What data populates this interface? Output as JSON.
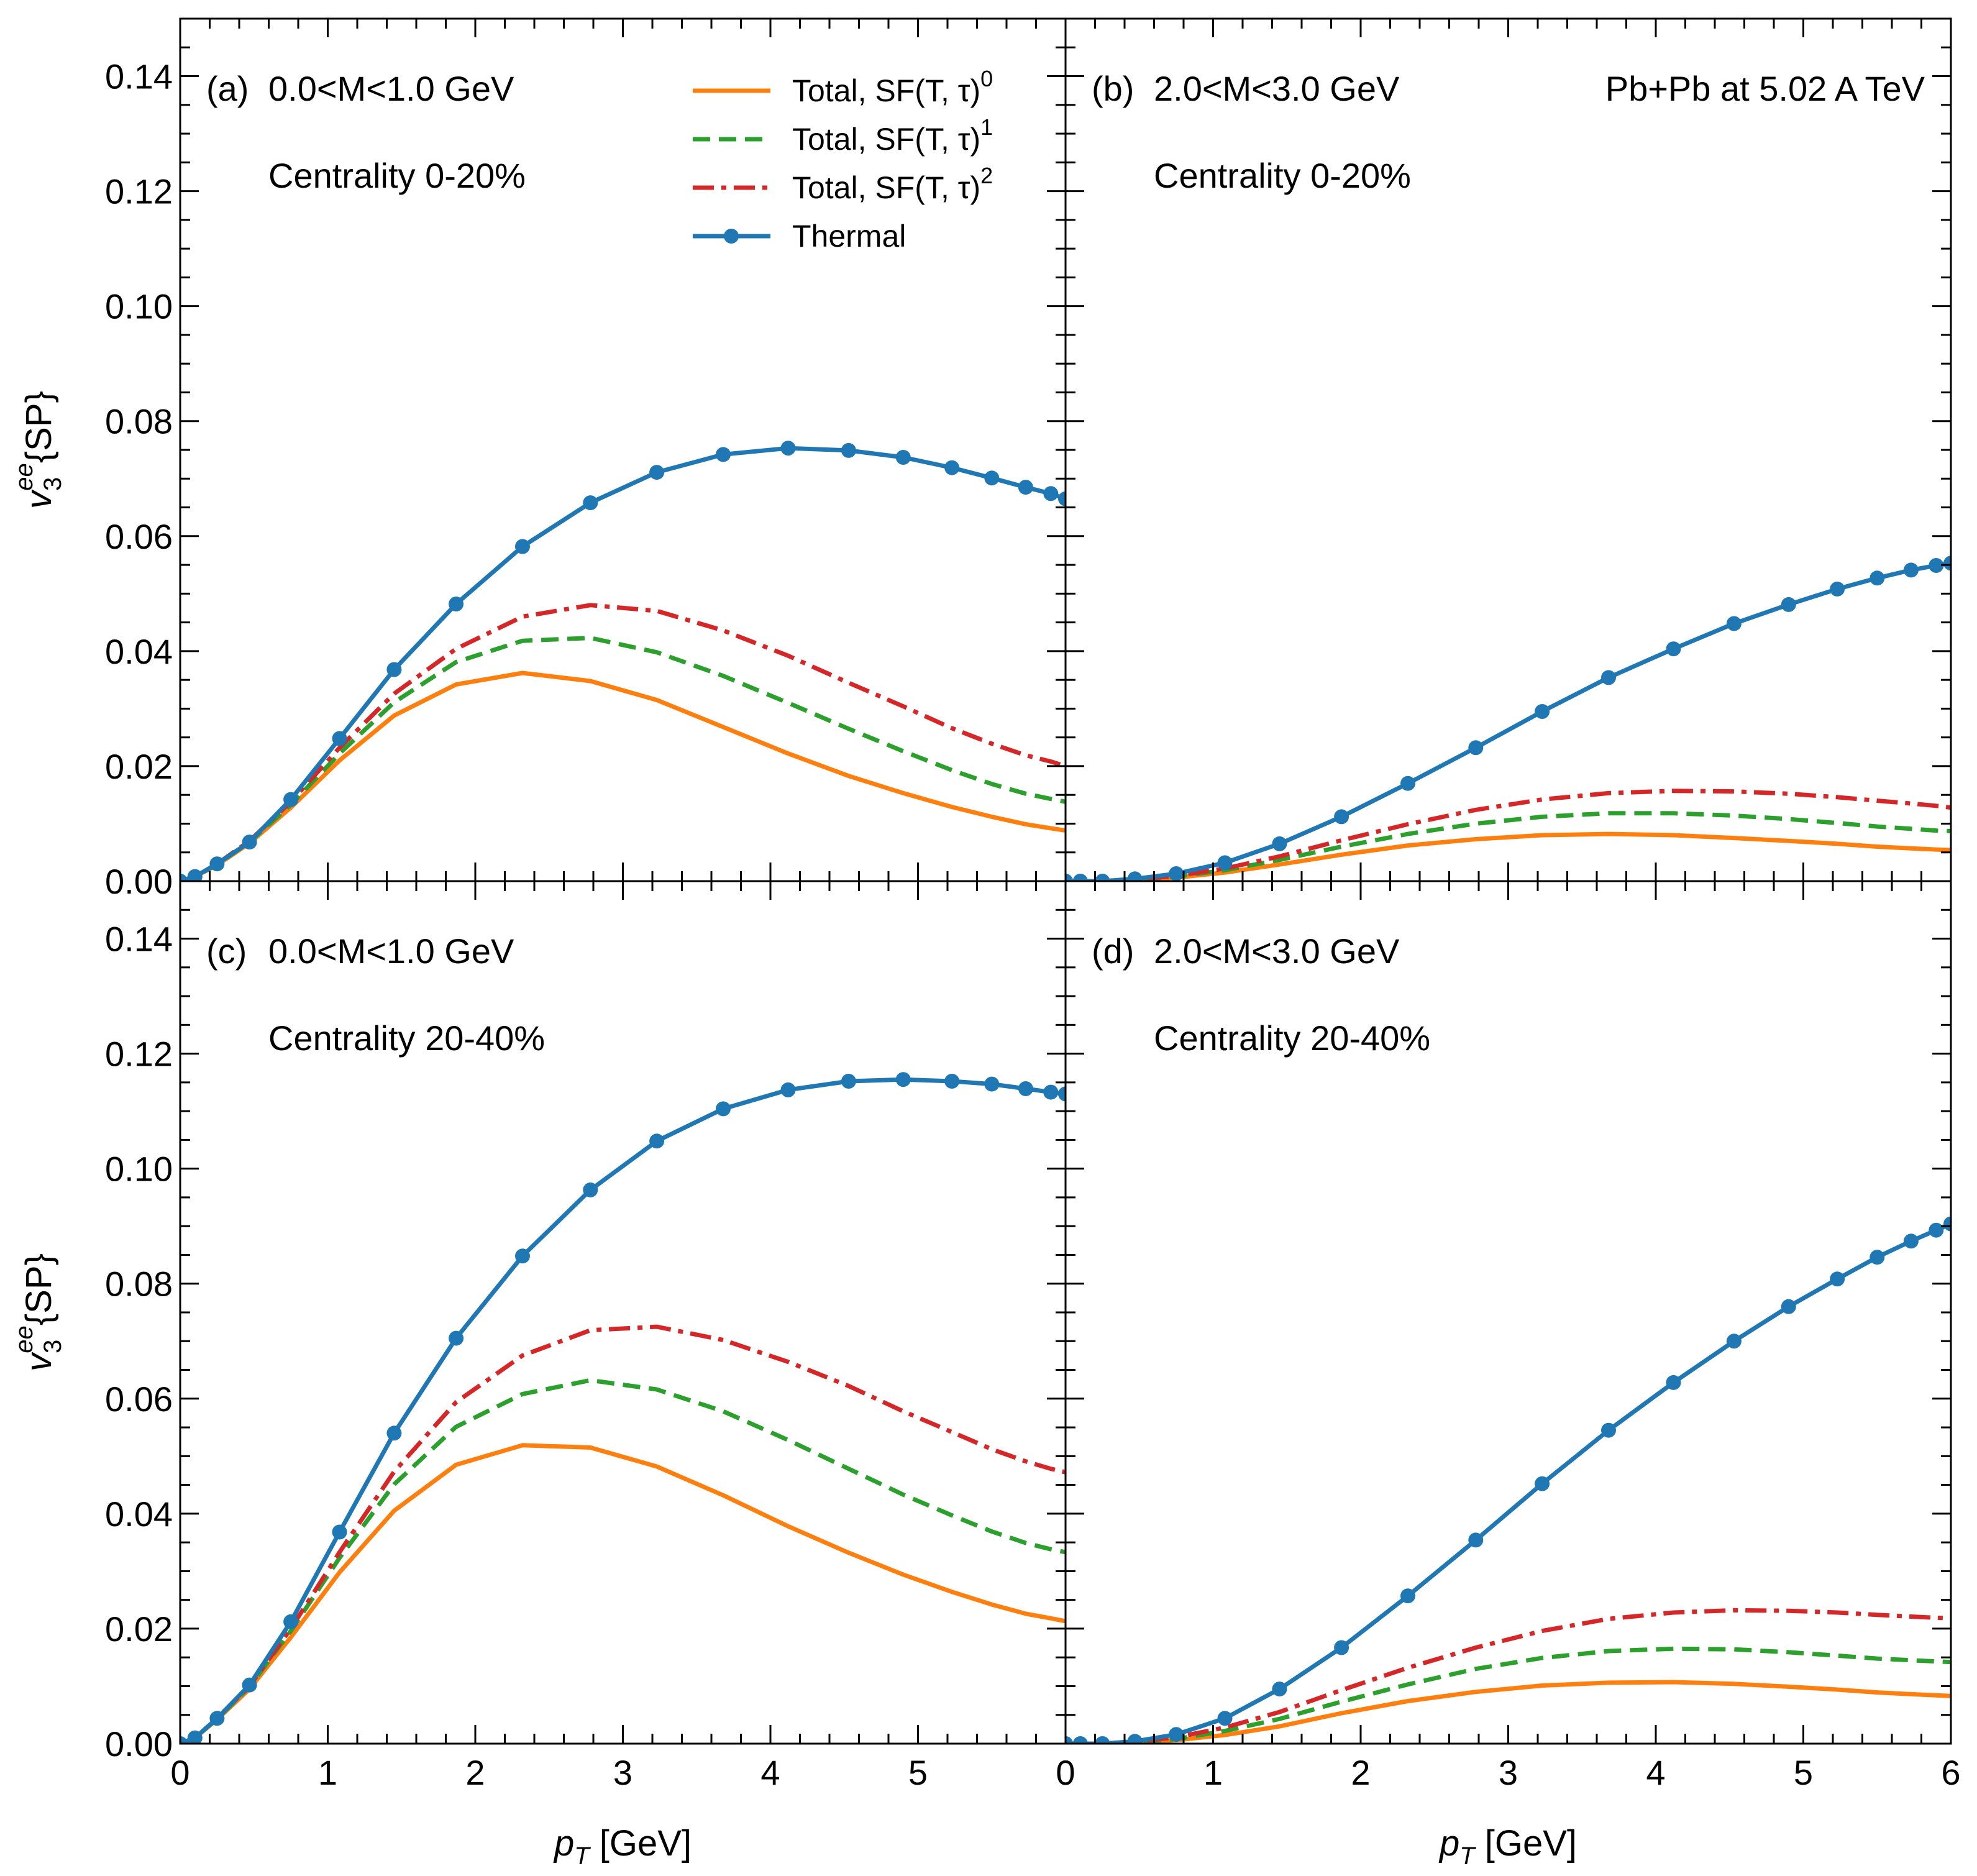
{
  "chart_data": {
    "type": "line",
    "layout": "2x2 panels with shared axes",
    "xlabel_var": "p",
    "xlabel_sub": "T",
    "xlabel_unit": "[GeV]",
    "ylabel_var": "v",
    "ylabel_sub": "3",
    "ylabel_sup": "ee",
    "ylabel_rest": "{SP}",
    "xlim": [
      0,
      6
    ],
    "ylim": [
      0,
      0.15
    ],
    "x_ticks": [
      "0",
      "1",
      "2",
      "3",
      "4",
      "5",
      "0"
    ],
    "x_ticks_right": [
      "0",
      "1",
      "2",
      "3",
      "4",
      "5",
      "6"
    ],
    "y_ticks": [
      "0.00",
      "0.02",
      "0.04",
      "0.06",
      "0.08",
      "0.10",
      "0.12",
      "0.14"
    ],
    "annotation": "Pb+Pb at 5.02 A TeV",
    "legend": [
      {
        "prefix": "Total, SF(T, τ)",
        "sup": "0",
        "style": "solid",
        "color": "#ff7f0e"
      },
      {
        "prefix": "Total, SF(T, τ)",
        "sup": "1",
        "style": "dashed",
        "color": "#2ca02c"
      },
      {
        "prefix": "Total, SF(T, τ)",
        "sup": "2",
        "style": "dashdot",
        "color": "#d62728"
      },
      {
        "prefix": "Thermal",
        "sup": "",
        "style": "solid-marker",
        "color": "#1f77b4"
      }
    ],
    "panels": [
      {
        "id": "a",
        "label": "(a)",
        "mass": "0.0<M<1.0 GeV",
        "centrality": "Centrality 0-20%",
        "x": [
          0.0,
          0.1,
          0.25,
          0.47,
          0.75,
          1.08,
          1.45,
          1.87,
          2.32,
          2.78,
          3.23,
          3.68,
          4.12,
          4.53,
          4.9,
          5.23,
          5.5,
          5.73,
          5.9,
          6.0
        ],
        "series": [
          {
            "name": "sf0",
            "values": [
              0.0,
              0.0008,
              0.0028,
              0.0066,
              0.0128,
              0.021,
              0.0288,
              0.0342,
              0.0362,
              0.0348,
              0.0315,
              0.0268,
              0.0222,
              0.0183,
              0.0153,
              0.0129,
              0.0112,
              0.0099,
              0.0092,
              0.0088
            ]
          },
          {
            "name": "sf1",
            "values": [
              0.0,
              0.0008,
              0.0029,
              0.0068,
              0.0133,
              0.0222,
              0.0311,
              0.0381,
              0.0418,
              0.0423,
              0.0398,
              0.0357,
              0.031,
              0.0265,
              0.0226,
              0.0193,
              0.0169,
              0.0152,
              0.0143,
              0.0138
            ]
          },
          {
            "name": "sf2",
            "values": [
              0.0,
              0.0008,
              0.003,
              0.007,
              0.0138,
              0.0232,
              0.0326,
              0.0404,
              0.046,
              0.048,
              0.047,
              0.0436,
              0.0392,
              0.0345,
              0.0304,
              0.0266,
              0.0239,
              0.0219,
              0.0208,
              0.02
            ]
          },
          {
            "name": "thermal",
            "values": [
              0.0,
              0.0008,
              0.003,
              0.0068,
              0.0142,
              0.0248,
              0.0368,
              0.0482,
              0.0582,
              0.0658,
              0.0711,
              0.0742,
              0.0753,
              0.0749,
              0.0737,
              0.0719,
              0.0701,
              0.0685,
              0.0674,
              0.0665
            ]
          }
        ]
      },
      {
        "id": "b",
        "label": "(b)",
        "mass": "2.0<M<3.0 GeV",
        "centrality": "Centrality 0-20%",
        "x": [
          0.0,
          0.1,
          0.25,
          0.47,
          0.75,
          1.08,
          1.45,
          1.87,
          2.32,
          2.78,
          3.23,
          3.68,
          4.12,
          4.53,
          4.9,
          5.23,
          5.5,
          5.73,
          5.9,
          6.0
        ],
        "series": [
          {
            "name": "sf0",
            "values": [
              0.0,
              0.0,
              0.0,
              0.0002,
              0.0006,
              0.0015,
              0.0029,
              0.0046,
              0.0062,
              0.0073,
              0.008,
              0.0082,
              0.008,
              0.0075,
              0.007,
              0.0065,
              0.006,
              0.0057,
              0.0055,
              0.0054
            ]
          },
          {
            "name": "sf1",
            "values": [
              0.0,
              0.0,
              0.0,
              0.0002,
              0.0008,
              0.0019,
              0.0037,
              0.006,
              0.0082,
              0.01,
              0.0112,
              0.0118,
              0.0118,
              0.0114,
              0.0108,
              0.0101,
              0.0095,
              0.0091,
              0.0088,
              0.0087
            ]
          },
          {
            "name": "sf2",
            "values": [
              0.0,
              0.0,
              0.0,
              0.0003,
              0.0009,
              0.0022,
              0.0043,
              0.0071,
              0.0099,
              0.0124,
              0.0142,
              0.0153,
              0.0157,
              0.0156,
              0.0152,
              0.0146,
              0.014,
              0.0135,
              0.0131,
              0.0128
            ]
          },
          {
            "name": "thermal",
            "values": [
              0.0,
              0.0,
              0.0,
              0.0004,
              0.0013,
              0.0032,
              0.0065,
              0.0112,
              0.017,
              0.0232,
              0.0295,
              0.0354,
              0.0404,
              0.0448,
              0.0481,
              0.0508,
              0.0527,
              0.0541,
              0.0549,
              0.0553
            ]
          }
        ]
      },
      {
        "id": "c",
        "label": "(c)",
        "mass": "0.0<M<1.0 GeV",
        "centrality": "Centrality 20-40%",
        "x": [
          0.0,
          0.1,
          0.25,
          0.47,
          0.75,
          1.08,
          1.45,
          1.87,
          2.32,
          2.78,
          3.23,
          3.68,
          4.12,
          4.53,
          4.9,
          5.23,
          5.5,
          5.73,
          5.9,
          6.0
        ],
        "series": [
          {
            "name": "sf0",
            "values": [
              0.0,
              0.001,
              0.0042,
              0.0095,
              0.0185,
              0.0298,
              0.0405,
              0.0485,
              0.0519,
              0.0515,
              0.0482,
              0.0432,
              0.0378,
              0.0332,
              0.0294,
              0.0264,
              0.0242,
              0.0226,
              0.0218,
              0.0213
            ]
          },
          {
            "name": "sf1",
            "values": [
              0.0,
              0.001,
              0.0043,
              0.0099,
              0.0196,
              0.0323,
              0.0451,
              0.0551,
              0.0608,
              0.0632,
              0.0616,
              0.0578,
              0.0528,
              0.0478,
              0.0433,
              0.0397,
              0.0369,
              0.0349,
              0.0338,
              0.0333
            ]
          },
          {
            "name": "sf2",
            "values": [
              0.0,
              0.001,
              0.0044,
              0.01,
              0.02,
              0.0333,
              0.0473,
              0.0594,
              0.0675,
              0.0719,
              0.0725,
              0.0702,
              0.0664,
              0.0622,
              0.0578,
              0.0542,
              0.0512,
              0.0491,
              0.0478,
              0.0472
            ]
          },
          {
            "name": "thermal",
            "values": [
              0.0,
              0.001,
              0.0044,
              0.0102,
              0.0212,
              0.0368,
              0.054,
              0.0705,
              0.0848,
              0.0963,
              0.1048,
              0.1104,
              0.1137,
              0.1152,
              0.1155,
              0.1152,
              0.1147,
              0.1139,
              0.1133,
              0.113
            ]
          }
        ]
      },
      {
        "id": "d",
        "label": "(d)",
        "mass": "2.0<M<3.0 GeV",
        "centrality": "Centrality 20-40%",
        "x": [
          0.0,
          0.1,
          0.25,
          0.47,
          0.75,
          1.08,
          1.45,
          1.87,
          2.32,
          2.78,
          3.23,
          3.68,
          4.12,
          4.53,
          4.9,
          5.23,
          5.5,
          5.73,
          5.9,
          6.0
        ],
        "series": [
          {
            "name": "sf0",
            "values": [
              0.0,
              0.0,
              0.0,
              0.0002,
              0.0006,
              0.0015,
              0.003,
              0.0053,
              0.0074,
              0.009,
              0.0101,
              0.0106,
              0.0107,
              0.0104,
              0.0099,
              0.0094,
              0.0089,
              0.0086,
              0.0084,
              0.0083
            ]
          },
          {
            "name": "sf1",
            "values": [
              0.0,
              0.0,
              0.0,
              0.0002,
              0.0008,
              0.0022,
              0.0043,
              0.0073,
              0.0103,
              0.013,
              0.0149,
              0.0161,
              0.0165,
              0.0164,
              0.0159,
              0.0153,
              0.0148,
              0.0145,
              0.0143,
              0.0142
            ]
          },
          {
            "name": "sf2",
            "values": [
              0.0,
              0.0,
              0.0,
              0.0003,
              0.0011,
              0.0028,
              0.0055,
              0.0093,
              0.0132,
              0.0167,
              0.0196,
              0.0217,
              0.0228,
              0.0232,
              0.0231,
              0.0228,
              0.0224,
              0.0221,
              0.0219,
              0.0218
            ]
          },
          {
            "name": "thermal",
            "values": [
              0.0,
              0.0,
              0.0,
              0.0004,
              0.0016,
              0.0044,
              0.0095,
              0.0167,
              0.0257,
              0.0354,
              0.0452,
              0.0545,
              0.0628,
              0.07,
              0.076,
              0.0808,
              0.0846,
              0.0874,
              0.0893,
              0.0904
            ]
          }
        ]
      }
    ]
  }
}
